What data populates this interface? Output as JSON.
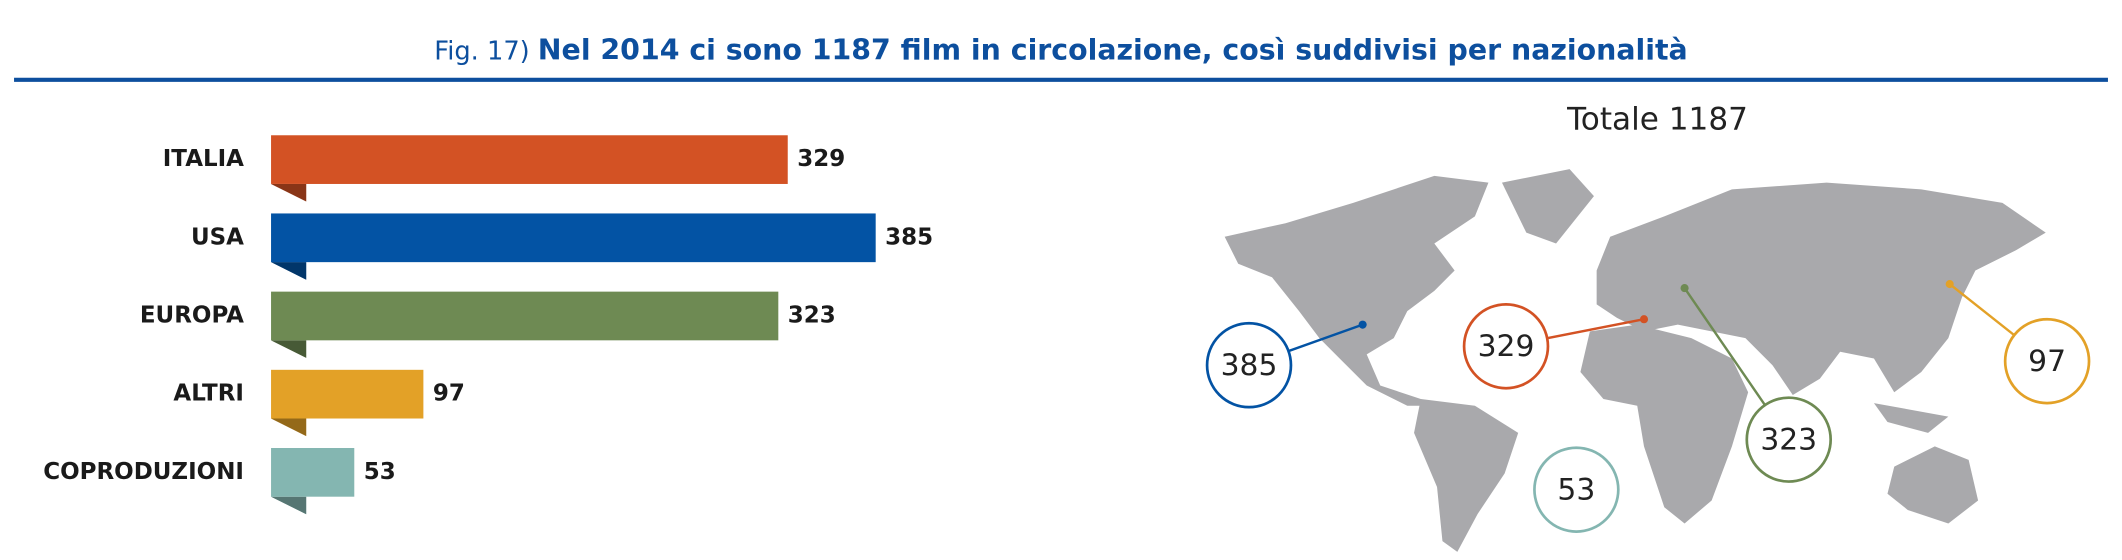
{
  "chart_data": {
    "type": "bar",
    "figure_label": "Fig. 17)",
    "title": "Nel 2014 ci sono 1187 film in circolazione, così suddivisi per nazionalità",
    "total_label": "Totale 1187",
    "categories": [
      "ITALIA",
      "USA",
      "EUROPA",
      "ALTRI",
      "COPRODUZIONI"
    ],
    "values": [
      329,
      385,
      323,
      97,
      53
    ],
    "colors": [
      "#d35224",
      "#0353a4",
      "#6e8a53",
      "#e3a127",
      "#84b6b1"
    ]
  }
}
